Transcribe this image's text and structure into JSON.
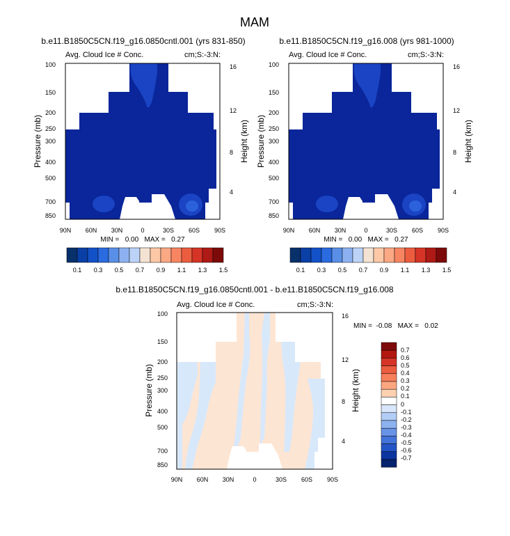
{
  "page_title": "MAM",
  "chart_data": [
    {
      "type": "heatmap",
      "title": "b.e11.B1850C5CN.f19_g16.0850cntl.001 (yrs 831-850)",
      "left_subtitle": "Avg. Cloud Ice # Conc.",
      "right_subtitle": "cm;S:-3:N:",
      "ylabel": "Pressure (mb)",
      "ylabel_right": "Height (km)",
      "x_ticks": [
        "90N",
        "60N",
        "30N",
        "0",
        "30S",
        "60S",
        "90S"
      ],
      "y_ticks": [
        "100",
        "150",
        "200",
        "250",
        "300",
        "400",
        "500",
        "700",
        "850"
      ],
      "y_ticks_right": [
        "16",
        "12",
        "8",
        "4"
      ],
      "min_max_text": "MIN =   0.00   MAX =   0.27",
      "colorbar_labels": [
        "0.1",
        "0.3",
        "0.5",
        "0.7",
        "0.9",
        "1.1",
        "1.3",
        "1.5"
      ]
    },
    {
      "type": "heatmap",
      "title": "b.e11.B1850C5CN.f19_g16.008 (yrs 981-1000)",
      "left_subtitle": "Avg. Cloud Ice # Conc.",
      "right_subtitle": "cm;S:-3:N:",
      "ylabel": "Pressure (mb)",
      "ylabel_right": "Height (km)",
      "x_ticks": [
        "90N",
        "60N",
        "30N",
        "0",
        "30S",
        "60S",
        "90S"
      ],
      "y_ticks": [
        "100",
        "150",
        "200",
        "250",
        "300",
        "400",
        "500",
        "700",
        "850"
      ],
      "y_ticks_right": [
        "16",
        "12",
        "8",
        "4"
      ],
      "min_max_text": "MIN =   0.00   MAX =   0.27",
      "colorbar_labels": [
        "0.1",
        "0.3",
        "0.5",
        "0.7",
        "0.9",
        "1.1",
        "1.3",
        "1.5"
      ]
    },
    {
      "type": "heatmap",
      "title": "b.e11.B1850C5CN.f19_g16.0850cntl.001 - b.e11.B1850C5CN.f19_g16.008",
      "left_subtitle": "Avg. Cloud Ice # Conc.",
      "right_subtitle": "cm;S:-3:N:",
      "ylabel": "Pressure (mb)",
      "ylabel_right": "Height (km)",
      "x_ticks": [
        "90N",
        "60N",
        "30N",
        "0",
        "30S",
        "60S",
        "90S"
      ],
      "y_ticks": [
        "100",
        "150",
        "200",
        "250",
        "300",
        "400",
        "500",
        "700",
        "850"
      ],
      "y_ticks_right": [
        "16",
        "12",
        "8",
        "4"
      ],
      "min_max_text": "MIN =  -0.08   MAX =   0.02",
      "colorbar_labels": [
        "0.7",
        "0.6",
        "0.5",
        "0.4",
        "0.3",
        "0.2",
        "0.1",
        "0",
        "-0.1",
        "-0.2",
        "-0.3",
        "-0.4",
        "-0.5",
        "-0.6",
        "-0.7"
      ]
    }
  ],
  "colors": {
    "seq_scale": [
      "#08306b",
      "#0a3fa6",
      "#1351c8",
      "#2a6be0",
      "#5a8fe8",
      "#8db1f0",
      "#bcd3f7",
      "#f4e2d2",
      "#fcc8a6",
      "#fba885",
      "#f88562",
      "#ec5c3f",
      "#d63426",
      "#ae1a15",
      "#7d0a0a"
    ],
    "div_scale": [
      "#7d0a0a",
      "#b3180f",
      "#d63426",
      "#ec5c3f",
      "#f77f5a",
      "#fca680",
      "#fdd0b0",
      "#ffffff",
      "#d8e6fb",
      "#b2cdf6",
      "#8cb2f0",
      "#6893e6",
      "#4473da",
      "#2454c6",
      "#0c35a0",
      "#06236e"
    ],
    "field_dark": "#0a269a",
    "field_light": "#1a44c4",
    "field_bright": "#2b62dc",
    "diff_peach": "#fde5d3",
    "diff_blue": "#d8e8fb"
  }
}
